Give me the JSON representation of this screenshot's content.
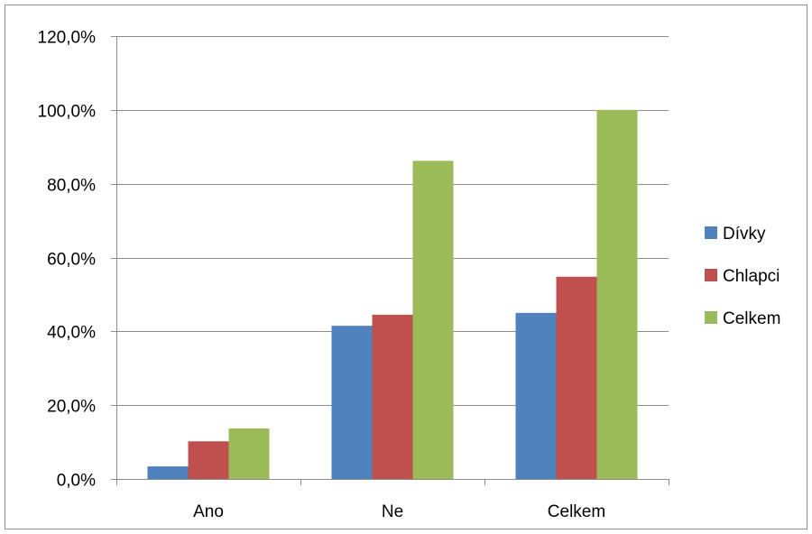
{
  "chart_data": {
    "type": "bar",
    "categories": [
      "Ano",
      "Ne",
      "Celkem"
    ],
    "series": [
      {
        "name": "Dívky",
        "values": [
          3.4,
          41.5,
          45.0
        ],
        "color": "#4F81BD"
      },
      {
        "name": "Chlapci",
        "values": [
          10.2,
          44.5,
          54.8
        ],
        "color": "#C0504D"
      },
      {
        "name": "Celkem",
        "values": [
          13.7,
          86.2,
          100.0
        ],
        "color": "#9BBB59"
      }
    ],
    "y_ticks": [
      "0,0%",
      "20,0%",
      "40,0%",
      "60,0%",
      "80,0%",
      "100,0%",
      "120,0%"
    ],
    "ylim": [
      0,
      120
    ],
    "y_step": 20,
    "grid": true,
    "legend_position": "right",
    "title": "",
    "xlabel": "",
    "ylabel": ""
  }
}
